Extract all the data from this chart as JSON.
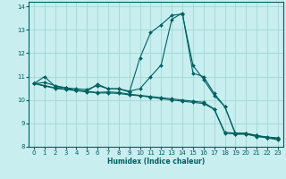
{
  "xlabel": "Humidex (Indice chaleur)",
  "bg_color": "#c8eef0",
  "grid_color": "#a0d8d0",
  "line_color": "#006060",
  "xlim": [
    -0.5,
    23.5
  ],
  "ylim": [
    8,
    14.2
  ],
  "xticks": [
    0,
    1,
    2,
    3,
    4,
    5,
    6,
    7,
    8,
    9,
    10,
    11,
    12,
    13,
    14,
    15,
    16,
    17,
    18,
    19,
    20,
    21,
    22,
    23
  ],
  "yticks": [
    8,
    9,
    10,
    11,
    12,
    13,
    14
  ],
  "series": [
    {
      "x": [
        0,
        1,
        2,
        3,
        4,
        5,
        6,
        7,
        8,
        9,
        10,
        11,
        12,
        13,
        14,
        15,
        16,
        17,
        18,
        19,
        20,
        21,
        22,
        23
      ],
      "y": [
        10.7,
        10.6,
        10.5,
        10.45,
        10.4,
        10.35,
        10.3,
        10.3,
        10.28,
        10.22,
        10.18,
        10.12,
        10.06,
        10.0,
        9.95,
        9.9,
        9.85,
        9.6,
        8.58,
        8.55,
        8.55,
        8.46,
        8.4,
        8.35
      ]
    },
    {
      "x": [
        0,
        1,
        2,
        3,
        4,
        5,
        6,
        7,
        8,
        9,
        10,
        11,
        12,
        13,
        14,
        15,
        16,
        17,
        18,
        19,
        20,
        21,
        22,
        23
      ],
      "y": [
        10.72,
        10.62,
        10.52,
        10.47,
        10.42,
        10.37,
        10.32,
        10.35,
        10.32,
        10.25,
        10.2,
        10.15,
        10.1,
        10.05,
        10.0,
        9.95,
        9.9,
        9.62,
        8.62,
        8.58,
        8.57,
        8.48,
        8.42,
        8.38
      ]
    },
    {
      "x": [
        0,
        1,
        2,
        3,
        4,
        5,
        6,
        7,
        8,
        9,
        10,
        11,
        12,
        13,
        14,
        15,
        16,
        17,
        18,
        19,
        20,
        21,
        22,
        23
      ],
      "y": [
        10.7,
        10.75,
        10.62,
        10.52,
        10.48,
        10.45,
        10.62,
        10.48,
        10.48,
        10.38,
        10.48,
        11.0,
        11.5,
        13.45,
        13.72,
        11.15,
        11.0,
        10.28,
        9.72,
        8.58,
        8.58,
        8.48,
        8.4,
        8.35
      ]
    },
    {
      "x": [
        0,
        1,
        2,
        3,
        4,
        5,
        6,
        7,
        8,
        9,
        10,
        11,
        12,
        13,
        14,
        15,
        16,
        17,
        18,
        19,
        20,
        21,
        22,
        23
      ],
      "y": [
        10.7,
        11.0,
        10.58,
        10.52,
        10.4,
        10.38,
        10.68,
        10.48,
        10.48,
        10.34,
        11.8,
        12.88,
        13.22,
        13.62,
        13.68,
        11.48,
        10.88,
        10.2,
        9.72,
        8.54,
        8.54,
        8.44,
        8.38,
        8.3
      ]
    }
  ]
}
